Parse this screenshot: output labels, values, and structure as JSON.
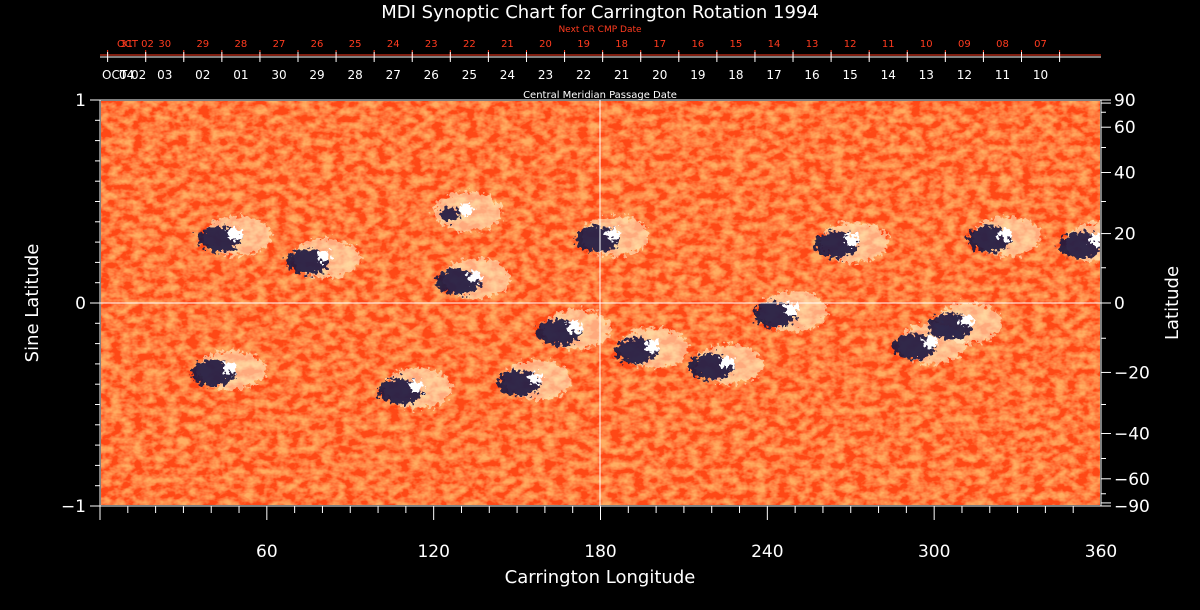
{
  "chart_data": {
    "type": "heatmap",
    "title": "MDI Synoptic Chart for Carrington Rotation 1994",
    "xlabel": "Carrington Longitude",
    "ylabel_left": "Sine Latitude",
    "ylabel_right": "Latitude",
    "xlim": [
      0,
      360
    ],
    "ylim": [
      -1,
      1
    ],
    "x_ticks": [
      60,
      120,
      180,
      240,
      300,
      360
    ],
    "y_ticks_left": [
      {
        "value": 1,
        "label": "1"
      },
      {
        "value": 0,
        "label": "0"
      },
      {
        "value": -1,
        "label": "−1"
      }
    ],
    "y_ticks_right_latitude": [
      90,
      60,
      40,
      20,
      0,
      -20,
      -40,
      -60,
      -90
    ],
    "y_ticks_right_labels": [
      "90",
      "60",
      "40",
      "20",
      "0",
      "−20",
      "−40",
      "−60",
      "−90"
    ],
    "top_axis_cmp": {
      "label": "Central Meridian Passage Date",
      "start_label": "OCT 02",
      "dates": [
        "04",
        "03",
        "02",
        "01",
        "30",
        "29",
        "28",
        "27",
        "26",
        "25",
        "24",
        "23",
        "22",
        "21",
        "20",
        "19",
        "18",
        "17",
        "16",
        "15",
        "14",
        "13",
        "12",
        "11",
        "10"
      ]
    },
    "top_axis_next_cr": {
      "label": "Next CR CMP Date",
      "start_label": "OCT 02",
      "dates": [
        "31",
        "30",
        "29",
        "28",
        "27",
        "26",
        "25",
        "24",
        "23",
        "22",
        "21",
        "20",
        "19",
        "18",
        "17",
        "16",
        "15",
        "14",
        "13",
        "12",
        "11",
        "10",
        "09",
        "08",
        "07"
      ]
    },
    "colors": {
      "background": "#000000",
      "field": "#ff4a12",
      "positive": "#fff8d0",
      "negative": "#1a1540",
      "red_axis": "#ff3b1f",
      "grid": "#ffffff"
    },
    "active_regions": [
      {
        "lon": 45,
        "sinlat": 0.33,
        "polarity": "negative"
      },
      {
        "lon": 77,
        "sinlat": 0.22,
        "polarity": "negative"
      },
      {
        "lon": 128,
        "sinlat": 0.45,
        "polarity": "positive"
      },
      {
        "lon": 131,
        "sinlat": 0.12,
        "polarity": "negative"
      },
      {
        "lon": 181,
        "sinlat": 0.33,
        "polarity": "negative"
      },
      {
        "lon": 43,
        "sinlat": -0.33,
        "polarity": "negative"
      },
      {
        "lon": 110,
        "sinlat": -0.42,
        "polarity": "negative"
      },
      {
        "lon": 153,
        "sinlat": -0.38,
        "polarity": "negative"
      },
      {
        "lon": 167,
        "sinlat": -0.13,
        "polarity": "negative"
      },
      {
        "lon": 195,
        "sinlat": -0.22,
        "polarity": "negative"
      },
      {
        "lon": 222,
        "sinlat": -0.3,
        "polarity": "negative"
      },
      {
        "lon": 245,
        "sinlat": -0.04,
        "polarity": "negative"
      },
      {
        "lon": 267,
        "sinlat": 0.3,
        "polarity": "negative"
      },
      {
        "lon": 295,
        "sinlat": -0.2,
        "polarity": "negative"
      },
      {
        "lon": 308,
        "sinlat": -0.1,
        "polarity": "negative"
      },
      {
        "lon": 322,
        "sinlat": 0.33,
        "polarity": "negative"
      },
      {
        "lon": 355,
        "sinlat": 0.3,
        "polarity": "negative"
      }
    ]
  }
}
